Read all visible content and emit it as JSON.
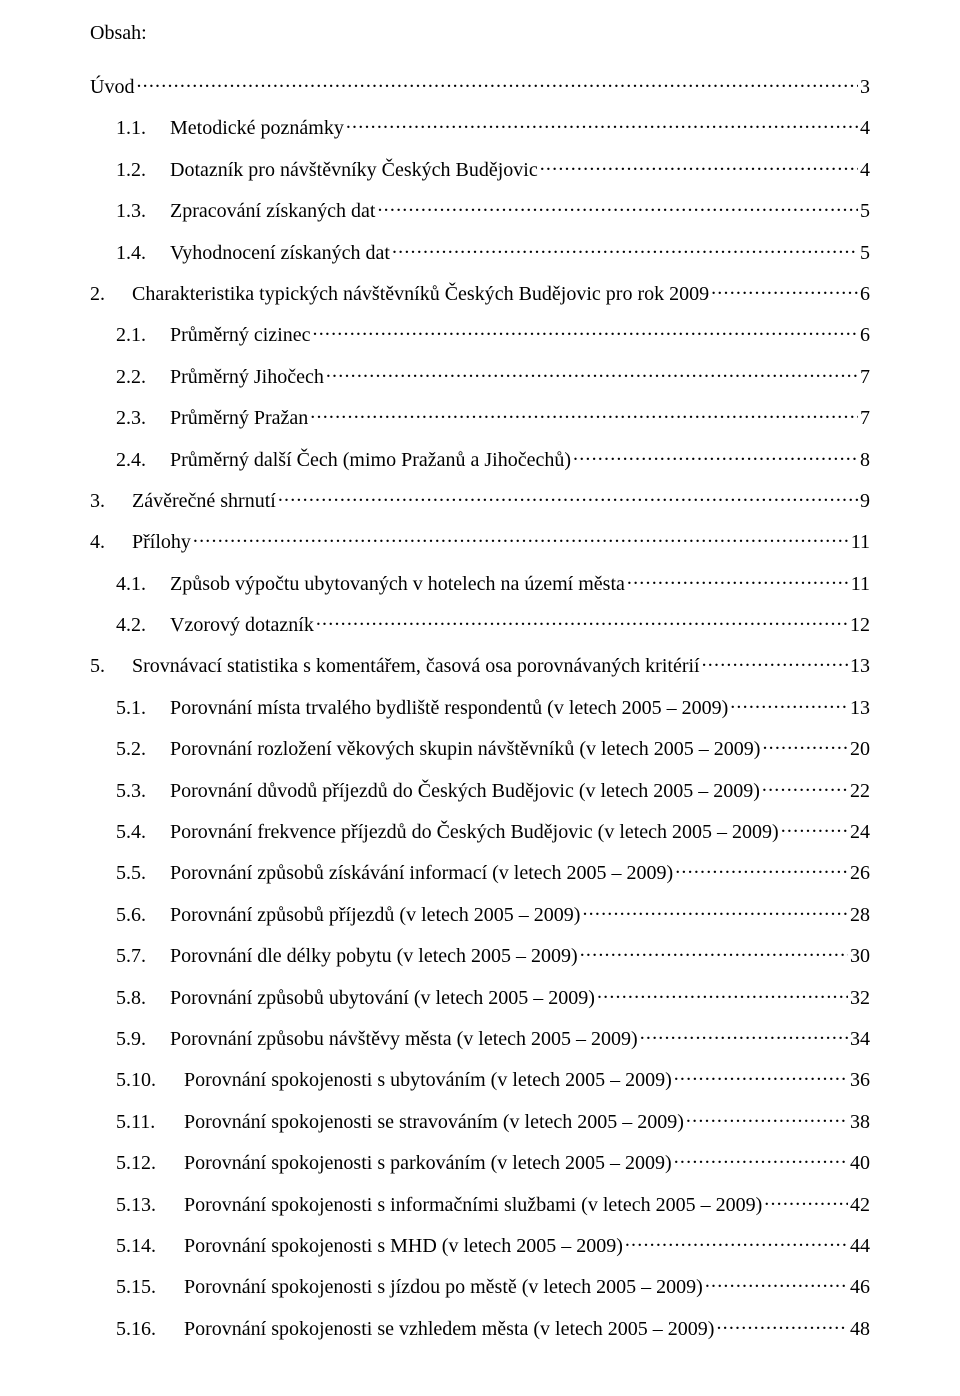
{
  "heading": "Obsah:",
  "entries": [
    {
      "indent": 0,
      "numClass": "",
      "num": "",
      "text": "Úvod",
      "page": "3"
    },
    {
      "indent": 1,
      "numClass": "num-w-med",
      "num": "1.1.",
      "text": "Metodické poznámky",
      "page": "4"
    },
    {
      "indent": 1,
      "numClass": "num-w-med",
      "num": "1.2.",
      "text": "Dotazník pro návštěvníky Českých Budějovic",
      "page": "4"
    },
    {
      "indent": 1,
      "numClass": "num-w-med",
      "num": "1.3.",
      "text": "Zpracování získaných dat",
      "page": "5"
    },
    {
      "indent": 1,
      "numClass": "num-w-med",
      "num": "1.4.",
      "text": "Vyhodnocení získaných dat",
      "page": "5"
    },
    {
      "indent": 0,
      "numClass": "num-w-small",
      "num": "2.",
      "text": "Charakteristika typických návštěvníků Českých Budějovic pro rok 2009",
      "page": "6"
    },
    {
      "indent": 1,
      "numClass": "num-w-med",
      "num": "2.1.",
      "text": "Průměrný cizinec",
      "page": "6"
    },
    {
      "indent": 1,
      "numClass": "num-w-med",
      "num": "2.2.",
      "text": "Průměrný Jihočech",
      "page": "7"
    },
    {
      "indent": 1,
      "numClass": "num-w-med",
      "num": "2.3.",
      "text": "Průměrný Pražan",
      "page": "7"
    },
    {
      "indent": 1,
      "numClass": "num-w-med",
      "num": "2.4.",
      "text": "Průměrný další Čech (mimo Pražanů a Jihočechů)",
      "page": "8"
    },
    {
      "indent": 0,
      "numClass": "num-w-small",
      "num": "3.",
      "text": "Závěrečné shrnutí",
      "page": "9"
    },
    {
      "indent": 0,
      "numClass": "num-w-small",
      "num": "4.",
      "text": "Přílohy",
      "page": "11"
    },
    {
      "indent": 1,
      "numClass": "num-w-med",
      "num": "4.1.",
      "text": "Způsob výpočtu ubytovaných v hotelech na území města",
      "page": "11"
    },
    {
      "indent": 1,
      "numClass": "num-w-med",
      "num": "4.2.",
      "text": "Vzorový dotazník",
      "page": "12"
    },
    {
      "indent": 0,
      "numClass": "num-w-small",
      "num": "5.",
      "text": "Srovnávací statistika s komentářem, časová osa porovnávaných kritérií",
      "page": "13"
    },
    {
      "indent": 1,
      "numClass": "num-w-med",
      "num": "5.1.",
      "text": "Porovnání místa trvalého bydliště respondentů (v letech 2005 – 2009)",
      "page": "13"
    },
    {
      "indent": 1,
      "numClass": "num-w-med",
      "num": "5.2.",
      "text": "Porovnání rozložení věkových skupin návštěvníků (v letech 2005 – 2009)",
      "page": "20"
    },
    {
      "indent": 1,
      "numClass": "num-w-med",
      "num": "5.3.",
      "text": "Porovnání důvodů příjezdů do Českých Budějovic (v letech 2005 – 2009)",
      "page": "22"
    },
    {
      "indent": 1,
      "numClass": "num-w-med",
      "num": "5.4.",
      "text": "Porovnání frekvence příjezdů do Českých Budějovic (v letech 2005 – 2009)",
      "page": "24"
    },
    {
      "indent": 1,
      "numClass": "num-w-med",
      "num": "5.5.",
      "text": "Porovnání způsobů získávání informací (v letech 2005 – 2009)",
      "page": "26"
    },
    {
      "indent": 1,
      "numClass": "num-w-med",
      "num": "5.6.",
      "text": "Porovnání způsobů příjezdů (v letech 2005 – 2009)",
      "page": "28"
    },
    {
      "indent": 1,
      "numClass": "num-w-med",
      "num": "5.7.",
      "text": "Porovnání dle délky pobytu (v letech 2005 – 2009)",
      "page": "30"
    },
    {
      "indent": 1,
      "numClass": "num-w-med",
      "num": "5.8.",
      "text": "Porovnání způsobů ubytování (v letech 2005 – 2009)",
      "page": "32"
    },
    {
      "indent": 1,
      "numClass": "num-w-med",
      "num": "5.9.",
      "text": "Porovnání způsobu návštěvy města (v letech 2005 – 2009)",
      "page": "34"
    },
    {
      "indent": 2,
      "numClass": "num-w-large",
      "num": "5.10.",
      "text": "Porovnání spokojenosti s ubytováním (v letech 2005 – 2009)",
      "page": "36"
    },
    {
      "indent": 2,
      "numClass": "num-w-large",
      "num": "5.11.",
      "text": "Porovnání spokojenosti se stravováním (v letech 2005 – 2009)",
      "page": "38"
    },
    {
      "indent": 2,
      "numClass": "num-w-large",
      "num": "5.12.",
      "text": "Porovnání spokojenosti s parkováním (v letech 2005 – 2009)",
      "page": "40"
    },
    {
      "indent": 2,
      "numClass": "num-w-large",
      "num": "5.13.",
      "text": "Porovnání spokojenosti s informačními službami (v letech 2005 – 2009)",
      "page": "42"
    },
    {
      "indent": 2,
      "numClass": "num-w-large",
      "num": "5.14.",
      "text": "Porovnání spokojenosti s MHD (v letech 2005 – 2009)",
      "page": "44"
    },
    {
      "indent": 2,
      "numClass": "num-w-large",
      "num": "5.15.",
      "text": "Porovnání spokojenosti s jízdou po městě (v letech 2005 – 2009)",
      "page": "46"
    },
    {
      "indent": 2,
      "numClass": "num-w-large",
      "num": "5.16.",
      "text": "Porovnání spokojenosti se vzhledem města (v letech 2005 – 2009)",
      "page": "48"
    }
  ]
}
